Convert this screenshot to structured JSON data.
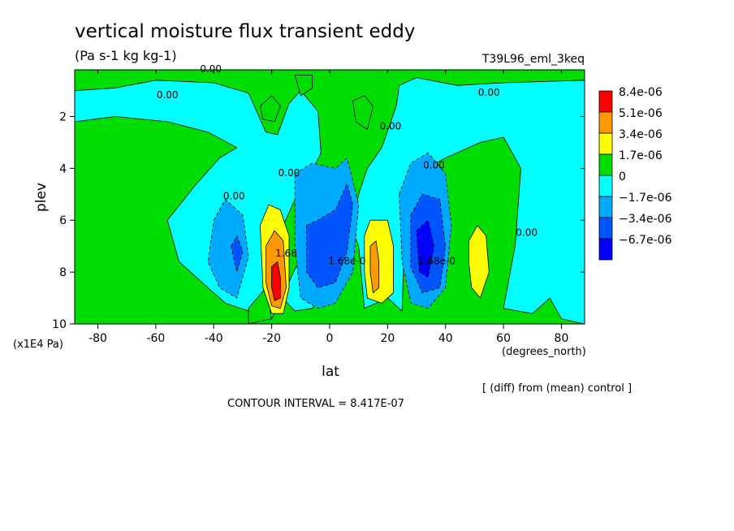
{
  "header": {
    "title": "vertical moisture flux transient eddy",
    "units": "(Pa s-1 kg kg-1)",
    "run": "T39L96_eml_3keq"
  },
  "footer": {
    "diff_note": "[ (diff) from (mean) control ]",
    "contour_interval": "CONTOUR INTERVAL = 8.417E-07"
  },
  "chart_data": {
    "type": "heatmap",
    "title": "vertical moisture flux transient eddy",
    "subtitle": "(Pa s-1 kg kg-1)",
    "xlabel": "lat",
    "xunits": "(degrees_north)",
    "ylabel": "plev",
    "yunits": "(x1E4 Pa)",
    "xlim": [
      -88,
      88
    ],
    "ylim": [
      10,
      0.2
    ],
    "x_ticks": [
      {
        "value": -80,
        "label": "-80"
      },
      {
        "value": -60,
        "label": "-60"
      },
      {
        "value": -40,
        "label": "-40"
      },
      {
        "value": -20,
        "label": "-20"
      },
      {
        "value": 0,
        "label": "0"
      },
      {
        "value": 20,
        "label": "20"
      },
      {
        "value": 40,
        "label": "40"
      },
      {
        "value": 60,
        "label": "60"
      },
      {
        "value": 80,
        "label": "80"
      }
    ],
    "y_ticks": [
      {
        "value": 2,
        "label": "2"
      },
      {
        "value": 4,
        "label": "4"
      },
      {
        "value": 6,
        "label": "6"
      },
      {
        "value": 8,
        "label": "8"
      },
      {
        "value": 10,
        "label": "10"
      }
    ],
    "contour_interval": 8.417e-07,
    "legend": [
      {
        "label": "8.4e-06",
        "color": "#ff0000"
      },
      {
        "label": "5.1e-06",
        "color": "#ff9900"
      },
      {
        "label": "3.4e-06",
        "color": "#ffff00"
      },
      {
        "label": "1.7e-06",
        "color": "#00dd00"
      },
      {
        "label": "0",
        "color": "#00ffff"
      },
      {
        "label": "−1.7e-06",
        "color": "#00aaff"
      },
      {
        "label": "−3.4e-06",
        "color": "#0055ff"
      },
      {
        "label": "−6.7e-06",
        "color": "#0000ff"
      }
    ],
    "legend_placement": "right",
    "contour_labels": [
      {
        "text": "0.00",
        "x": -41,
        "y": 0.3
      },
      {
        "text": "0.00",
        "x": -56,
        "y": 1.3
      },
      {
        "text": "0.00",
        "x": 55,
        "y": 1.2
      },
      {
        "text": "0.00",
        "x": 21,
        "y": 2.5
      },
      {
        "text": "0.00",
        "x": -33,
        "y": 5.2
      },
      {
        "text": "0.00",
        "x": -14,
        "y": 4.3
      },
      {
        "text": "0.00",
        "x": 36,
        "y": 4.0
      },
      {
        "text": "0.00",
        "x": 68,
        "y": 6.6
      },
      {
        "text": "1.68e-0",
        "x": 6,
        "y": 7.7
      },
      {
        "text": "1.68e-0",
        "x": 37,
        "y": 7.7
      },
      {
        "text": "1.68",
        "x": -15,
        "y": 7.4
      }
    ],
    "regions": [
      {
        "level": "positive",
        "color": "#00dd00",
        "polygon": [
          [
            -88,
            0.2
          ],
          [
            -88,
            10
          ],
          [
            88,
            10
          ],
          [
            88,
            0.2
          ]
        ]
      },
      {
        "level": "zero",
        "color": "#00ffff",
        "polygon": [
          [
            -88,
            1.0
          ],
          [
            -74,
            0.9
          ],
          [
            -60,
            0.6
          ],
          [
            -40,
            0.7
          ],
          [
            -28,
            1.1
          ],
          [
            -22,
            2.6
          ],
          [
            -18,
            2.7
          ],
          [
            -14,
            1.5
          ],
          [
            -10,
            1.0
          ],
          [
            -4,
            1.8
          ],
          [
            -3,
            3.4
          ],
          [
            -6,
            4.1
          ],
          [
            -12,
            5.2
          ],
          [
            -16,
            6.2
          ],
          [
            -18,
            8.8
          ],
          [
            -12,
            9.5
          ],
          [
            -6,
            9.4
          ],
          [
            0,
            8.6
          ],
          [
            8,
            6.1
          ],
          [
            10,
            5.0
          ],
          [
            13,
            4.0
          ],
          [
            18,
            3.2
          ],
          [
            23,
            1.6
          ],
          [
            24,
            0.8
          ],
          [
            30,
            0.5
          ],
          [
            44,
            0.8
          ],
          [
            60,
            0.7
          ],
          [
            88,
            0.6
          ],
          [
            88,
            10
          ],
          [
            80,
            9.8
          ],
          [
            76,
            9.0
          ],
          [
            70,
            9.6
          ],
          [
            60,
            9.4
          ],
          [
            64,
            7.0
          ],
          [
            66,
            4.0
          ],
          [
            60,
            2.8
          ],
          [
            52,
            3.0
          ],
          [
            40,
            3.6
          ],
          [
            30,
            4.2
          ],
          [
            26,
            6.0
          ],
          [
            25,
            9.5
          ],
          [
            20,
            9.0
          ],
          [
            12,
            9.4
          ],
          [
            10,
            7.0
          ],
          [
            5,
            5.5
          ],
          [
            2,
            4.5
          ],
          [
            -4,
            6.0
          ],
          [
            -20,
            9.8
          ],
          [
            -28,
            9.5
          ],
          [
            -36,
            9.2
          ],
          [
            -44,
            8.4
          ],
          [
            -52,
            7.6
          ],
          [
            -56,
            6.0
          ],
          [
            -46,
            4.6
          ],
          [
            -38,
            3.6
          ],
          [
            -32,
            3.2
          ],
          [
            -42,
            2.6
          ],
          [
            -56,
            2.2
          ],
          [
            -74,
            2.0
          ],
          [
            -88,
            2.2
          ]
        ]
      },
      {
        "level": "positive",
        "color": "#00dd00",
        "polygon": [
          [
            -12,
            0.4
          ],
          [
            -6,
            0.4
          ],
          [
            -6,
            0.9
          ],
          [
            -10,
            1.2
          ]
        ]
      },
      {
        "level": "positive",
        "color": "#00dd00",
        "polygon": [
          [
            -24,
            1.6
          ],
          [
            -20,
            1.2
          ],
          [
            -17,
            1.6
          ],
          [
            -19,
            2.2
          ],
          [
            -23,
            2.1
          ]
        ]
      },
      {
        "level": "positive",
        "color": "#00dd00",
        "polygon": [
          [
            8,
            1.4
          ],
          [
            12,
            1.2
          ],
          [
            15,
            1.6
          ],
          [
            13,
            2.5
          ],
          [
            9,
            2.2
          ]
        ]
      },
      {
        "level": "positive",
        "color": "#00dd00",
        "polygon": [
          [
            -28,
            9.4
          ],
          [
            -22,
            8.6
          ],
          [
            -20,
            9.8
          ],
          [
            -28,
            10
          ]
        ]
      },
      {
        "level": "neg1",
        "color": "#00aaff",
        "polygon": [
          [
            -40,
            6.0
          ],
          [
            -36,
            5.2
          ],
          [
            -30,
            5.8
          ],
          [
            -28,
            7.4
          ],
          [
            -32,
            9.0
          ],
          [
            -38,
            8.6
          ],
          [
            -42,
            7.6
          ]
        ]
      },
      {
        "level": "neg1",
        "color": "#00aaff",
        "polygon": [
          [
            -12,
            4.2
          ],
          [
            -6,
            3.8
          ],
          [
            2,
            4.0
          ],
          [
            6,
            3.6
          ],
          [
            10,
            5.4
          ],
          [
            8,
            8.0
          ],
          [
            2,
            9.2
          ],
          [
            -4,
            9.4
          ],
          [
            -10,
            9.0
          ],
          [
            -12,
            7.0
          ]
        ]
      },
      {
        "level": "neg1",
        "color": "#00aaff",
        "polygon": [
          [
            24,
            5.0
          ],
          [
            28,
            3.8
          ],
          [
            34,
            3.4
          ],
          [
            40,
            4.2
          ],
          [
            42,
            6.2
          ],
          [
            40,
            8.6
          ],
          [
            34,
            9.4
          ],
          [
            28,
            9.2
          ],
          [
            25,
            7.6
          ]
        ]
      },
      {
        "level": "neg2",
        "color": "#0055ff",
        "polygon": [
          [
            -34,
            7.0
          ],
          [
            -32,
            6.6
          ],
          [
            -30,
            7.2
          ],
          [
            -32,
            8.0
          ]
        ]
      },
      {
        "level": "neg2",
        "color": "#0055ff",
        "polygon": [
          [
            -8,
            6.2
          ],
          [
            -4,
            6.0
          ],
          [
            2,
            5.6
          ],
          [
            6,
            4.6
          ],
          [
            8,
            5.4
          ],
          [
            6,
            7.2
          ],
          [
            2,
            8.4
          ],
          [
            -4,
            8.6
          ],
          [
            -8,
            8.0
          ]
        ]
      },
      {
        "level": "neg2",
        "color": "#0055ff",
        "polygon": [
          [
            28,
            5.8
          ],
          [
            32,
            5.0
          ],
          [
            38,
            5.2
          ],
          [
            40,
            7.0
          ],
          [
            38,
            8.6
          ],
          [
            32,
            8.8
          ],
          [
            28,
            7.8
          ]
        ]
      },
      {
        "level": "neg3",
        "color": "#0000ff",
        "polygon": [
          [
            30,
            6.4
          ],
          [
            34,
            6.0
          ],
          [
            36,
            7.0
          ],
          [
            34,
            8.2
          ],
          [
            31,
            8.0
          ]
        ]
      },
      {
        "level": "pos1",
        "color": "#ffff00",
        "polygon": [
          [
            -24,
            6.2
          ],
          [
            -21,
            5.4
          ],
          [
            -17,
            5.6
          ],
          [
            -14,
            6.6
          ],
          [
            -14,
            8.6
          ],
          [
            -16,
            9.6
          ],
          [
            -20,
            9.6
          ],
          [
            -23,
            8.6
          ]
        ]
      },
      {
        "level": "pos1",
        "color": "#ffff00",
        "polygon": [
          [
            12,
            6.6
          ],
          [
            14,
            6.0
          ],
          [
            20,
            6.0
          ],
          [
            22,
            7.0
          ],
          [
            22,
            8.8
          ],
          [
            18,
            9.2
          ],
          [
            13,
            9.0
          ],
          [
            12,
            8.0
          ]
        ]
      },
      {
        "level": "pos1",
        "color": "#ffff00",
        "polygon": [
          [
            48,
            6.8
          ],
          [
            51,
            6.2
          ],
          [
            54,
            6.6
          ],
          [
            55,
            8.0
          ],
          [
            52,
            9.0
          ],
          [
            49,
            8.6
          ],
          [
            48,
            7.6
          ]
        ]
      },
      {
        "level": "pos2",
        "color": "#ff9900",
        "polygon": [
          [
            -22,
            7.0
          ],
          [
            -19,
            6.4
          ],
          [
            -16,
            6.8
          ],
          [
            -15,
            8.6
          ],
          [
            -17,
            9.4
          ],
          [
            -20,
            9.3
          ],
          [
            -22,
            8.4
          ]
        ]
      },
      {
        "level": "pos2",
        "color": "#ff9900",
        "polygon": [
          [
            14,
            7.0
          ],
          [
            16,
            6.8
          ],
          [
            17,
            7.6
          ],
          [
            17,
            8.6
          ],
          [
            15,
            8.8
          ],
          [
            14,
            8.0
          ]
        ]
      },
      {
        "level": "pos3",
        "color": "#ff0000",
        "polygon": [
          [
            -20,
            7.8
          ],
          [
            -18,
            7.6
          ],
          [
            -17,
            8.2
          ],
          [
            -17,
            9.0
          ],
          [
            -19,
            9.1
          ],
          [
            -20,
            8.6
          ]
        ]
      }
    ]
  }
}
